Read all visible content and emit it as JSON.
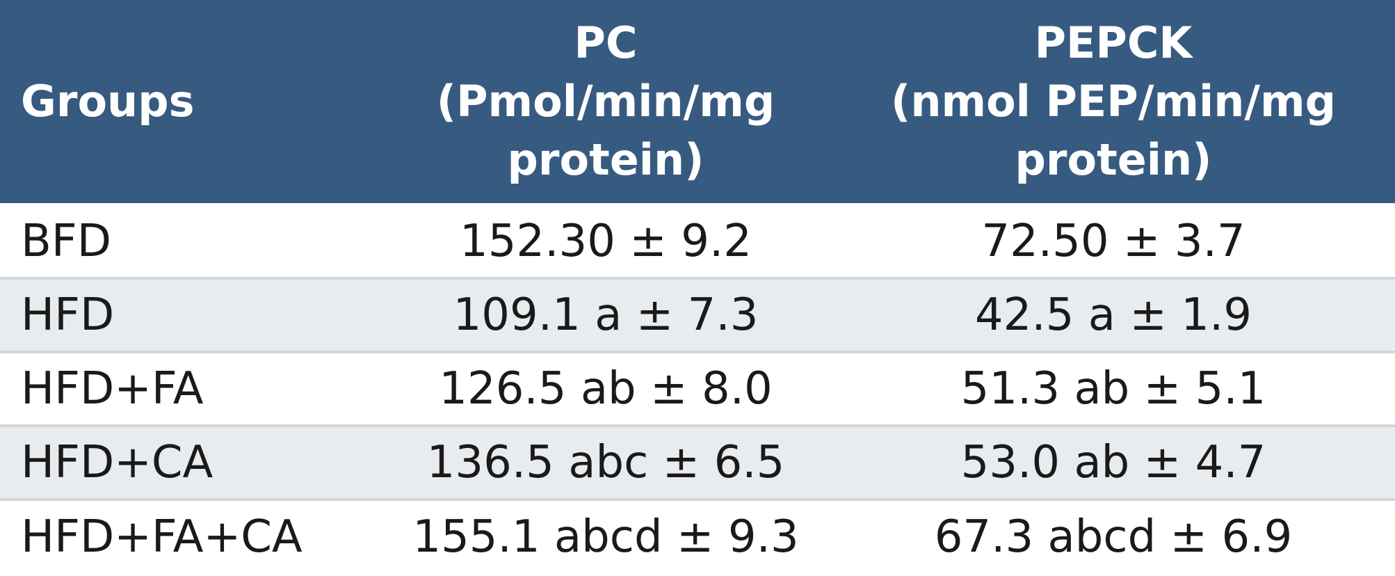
{
  "table": {
    "header": {
      "groups": "Groups",
      "pc": {
        "line1": "PC",
        "line2": "(Pmol/min/mg",
        "line3": "protein)"
      },
      "pepck": {
        "line1": "PEPCK",
        "line2": "(nmol PEP/min/mg",
        "line3": "protein)"
      }
    },
    "rows": [
      {
        "group": "BFD",
        "pc": "152.30 ± 9.2",
        "pepck": "72.50 ± 3.7"
      },
      {
        "group": "HFD",
        "pc": "109.1 a ± 7.3",
        "pepck": "42.5 a ± 1.9"
      },
      {
        "group": "HFD+FA",
        "pc": "126.5 ab ± 8.0",
        "pepck": "51.3 ab ± 5.1"
      },
      {
        "group": "HFD+CA",
        "pc": "136.5 abc ± 6.5",
        "pepck": "53.0 ab ± 4.7"
      },
      {
        "group": "HFD+FA+CA",
        "pc": "155.1 abcd ± 9.3",
        "pepck": "67.3 abcd ± 6.9"
      }
    ]
  },
  "colors": {
    "header_bg": "#375a80",
    "header_text": "#ffffff",
    "row_alt_bg": "#e9ecef",
    "row_bg": "#ffffff"
  }
}
